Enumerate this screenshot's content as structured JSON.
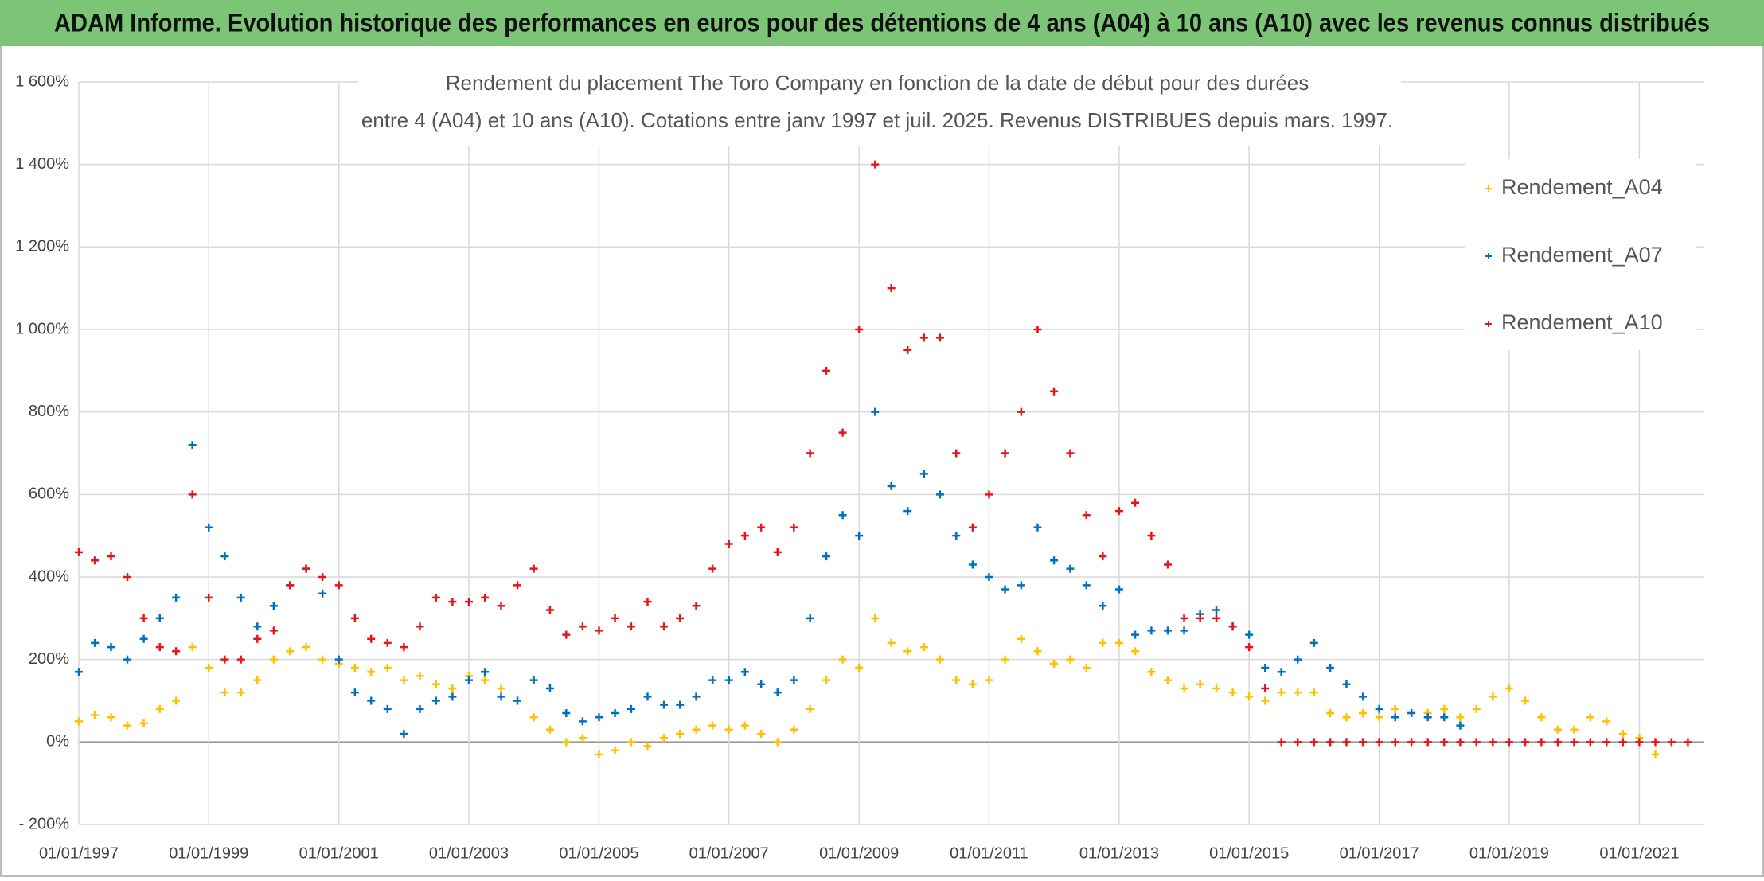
{
  "header": {
    "title": "ADAM Informe. Evolution historique des performances en euros pour des détentions de 4 ans (A04) à 10 ans (A10) avec les revenus connus distribués"
  },
  "chart_data": {
    "type": "scatter",
    "title": "Rendement du placement The Toro Company en fonction de la date de début pour des durées",
    "subtitle": "entre 4 (A04) et 10 ans (A10). Cotations entre janv 1997 et juil. 2025. Revenus DISTRIBUES depuis mars. 1997.",
    "x": [
      "01/01/1997",
      "01/04/1997",
      "01/07/1997",
      "01/10/1997",
      "01/01/1998",
      "01/04/1998",
      "01/07/1998",
      "01/10/1998",
      "01/01/1999",
      "01/04/1999",
      "01/07/1999",
      "01/10/1999",
      "01/01/2000",
      "01/04/2000",
      "01/07/2000",
      "01/10/2000",
      "01/01/2001",
      "01/04/2001",
      "01/07/2001",
      "01/10/2001",
      "01/01/2002",
      "01/04/2002",
      "01/07/2002",
      "01/10/2002",
      "01/01/2003",
      "01/04/2003",
      "01/07/2003",
      "01/10/2003",
      "01/01/2004",
      "01/04/2004",
      "01/07/2004",
      "01/10/2004",
      "01/01/2005",
      "01/04/2005",
      "01/07/2005",
      "01/10/2005",
      "01/01/2006",
      "01/04/2006",
      "01/07/2006",
      "01/10/2006",
      "01/01/2007",
      "01/04/2007",
      "01/07/2007",
      "01/10/2007",
      "01/01/2008",
      "01/04/2008",
      "01/07/2008",
      "01/10/2008",
      "01/01/2009",
      "01/04/2009",
      "01/07/2009",
      "01/10/2009",
      "01/01/2010",
      "01/04/2010",
      "01/07/2010",
      "01/10/2010",
      "01/01/2011",
      "01/04/2011",
      "01/07/2011",
      "01/10/2011",
      "01/01/2012",
      "01/04/2012",
      "01/07/2012",
      "01/10/2012",
      "01/01/2013",
      "01/04/2013",
      "01/07/2013",
      "01/10/2013",
      "01/01/2014",
      "01/04/2014",
      "01/07/2014",
      "01/10/2014",
      "01/01/2015",
      "01/04/2015",
      "01/07/2015",
      "01/10/2015",
      "01/01/2016",
      "01/04/2016",
      "01/07/2016",
      "01/10/2016",
      "01/01/2017",
      "01/04/2017",
      "01/07/2017",
      "01/10/2017",
      "01/01/2018",
      "01/04/2018",
      "01/07/2018",
      "01/10/2018",
      "01/01/2019",
      "01/04/2019",
      "01/07/2019",
      "01/10/2019",
      "01/01/2020",
      "01/04/2020",
      "01/07/2020",
      "01/10/2020",
      "01/01/2021",
      "01/04/2021",
      "01/07/2021",
      "01/10/2021"
    ],
    "series": [
      {
        "name": "Rendement_A04",
        "color": "#ffc000",
        "values": [
          50,
          65,
          60,
          40,
          45,
          80,
          100,
          230,
          180,
          120,
          120,
          150,
          200,
          220,
          230,
          200,
          190,
          180,
          170,
          180,
          150,
          160,
          140,
          130,
          160,
          150,
          130,
          100,
          60,
          30,
          0,
          10,
          -30,
          -20,
          0,
          -10,
          10,
          20,
          30,
          40,
          30,
          40,
          20,
          0,
          30,
          80,
          150,
          200,
          180,
          300,
          240,
          220,
          230,
          200,
          150,
          140,
          150,
          200,
          250,
          220,
          190,
          200,
          180,
          240,
          240,
          220,
          170,
          150,
          130,
          140,
          130,
          120,
          110,
          100,
          120,
          120,
          120,
          70,
          60,
          70,
          60,
          80,
          70,
          70,
          80,
          60,
          80,
          110,
          130,
          100,
          60,
          30,
          30,
          60,
          50,
          20,
          10,
          -30,
          null,
          null
        ]
      },
      {
        "name": "Rendement_A07",
        "color": "#0070c0",
        "values": [
          170,
          240,
          230,
          200,
          250,
          300,
          350,
          720,
          520,
          450,
          350,
          280,
          330,
          380,
          420,
          360,
          200,
          120,
          100,
          80,
          20,
          80,
          100,
          110,
          150,
          170,
          110,
          100,
          150,
          130,
          70,
          50,
          60,
          70,
          80,
          110,
          90,
          90,
          110,
          150,
          150,
          170,
          140,
          120,
          150,
          300,
          450,
          550,
          500,
          800,
          620,
          560,
          650,
          600,
          500,
          430,
          400,
          370,
          380,
          520,
          440,
          420,
          380,
          330,
          370,
          260,
          270,
          270,
          270,
          310,
          320,
          280,
          260,
          180,
          170,
          200,
          240,
          180,
          140,
          110,
          80,
          60,
          70,
          60,
          60,
          40,
          null,
          null,
          null,
          null,
          null,
          null,
          null,
          null,
          null,
          null,
          null,
          null,
          null,
          null
        ]
      },
      {
        "name": "Rendement_A10",
        "color": "#e8141c",
        "values": [
          460,
          440,
          450,
          400,
          300,
          230,
          220,
          600,
          350,
          200,
          200,
          250,
          270,
          380,
          420,
          400,
          380,
          300,
          250,
          240,
          230,
          280,
          350,
          340,
          340,
          350,
          330,
          380,
          420,
          320,
          260,
          280,
          270,
          300,
          280,
          340,
          280,
          300,
          330,
          420,
          480,
          500,
          520,
          460,
          520,
          700,
          900,
          750,
          1000,
          1400,
          1100,
          950,
          980,
          980,
          700,
          520,
          600,
          700,
          800,
          1000,
          850,
          700,
          550,
          450,
          560,
          580,
          500,
          430,
          300,
          300,
          300,
          280,
          230,
          130,
          0,
          0,
          0,
          0,
          0,
          0,
          0,
          0,
          0,
          0,
          0,
          0,
          0,
          0,
          0,
          0,
          0,
          0,
          0,
          0,
          0,
          0,
          0,
          0,
          0,
          0
        ]
      }
    ],
    "xlim": [
      "01/01/1997",
      "01/01/2022"
    ],
    "xticks": [
      "01/01/1997",
      "01/01/1999",
      "01/01/2001",
      "01/01/2003",
      "01/01/2005",
      "01/01/2007",
      "01/01/2009",
      "01/01/2011",
      "01/01/2013",
      "01/01/2015",
      "01/01/2017",
      "01/01/2019",
      "01/01/2021"
    ],
    "ylim": [
      -200,
      1600
    ],
    "yticks": [
      {
        "value": -200,
        "label": "- 200%"
      },
      {
        "value": 0,
        "label": "0%"
      },
      {
        "value": 200,
        "label": "200%"
      },
      {
        "value": 400,
        "label": "400%"
      },
      {
        "value": 600,
        "label": "600%"
      },
      {
        "value": 800,
        "label": "800%"
      },
      {
        "value": 1000,
        "label": "1 000%"
      },
      {
        "value": 1200,
        "label": "1 200%"
      },
      {
        "value": 1400,
        "label": "1 400%"
      },
      {
        "value": 1600,
        "label": "1 600%"
      }
    ],
    "grid": true,
    "legend": "top-right"
  }
}
